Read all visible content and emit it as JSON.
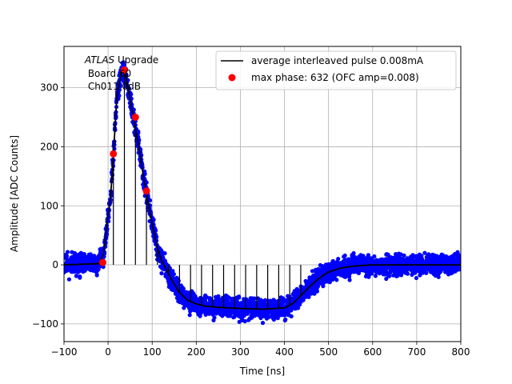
{
  "chart_data": {
    "type": "scatter",
    "xlabel": "Time [ns]",
    "ylabel": "Amplitude [ADC Counts]",
    "xlim": [
      -100,
      800
    ],
    "ylim": [
      -130,
      370
    ],
    "xticks": [
      -100,
      0,
      100,
      200,
      300,
      400,
      500,
      600,
      700,
      800
    ],
    "yticks": [
      -100,
      0,
      100,
      200,
      300
    ],
    "grid": true,
    "legend_position": "top-right",
    "annotation": {
      "atlas": "ATLAS",
      "upgrade": " Upgrade",
      "board": " Board 60",
      "channel": " Ch011 0dB"
    },
    "series": [
      {
        "name": "average interleaved pulse 0.008mA",
        "kind": "line",
        "color": "#000000",
        "x": [
          -100,
          -20,
          -10,
          0,
          5,
          10,
          20,
          30,
          35,
          40,
          50,
          60,
          70,
          80,
          90,
          100,
          110,
          120,
          140,
          160,
          180,
          200,
          220,
          250,
          300,
          350,
          400,
          420,
          440,
          460,
          480,
          500,
          530,
          560,
          600,
          650,
          700,
          800
        ],
        "y": [
          0,
          2,
          20,
          85,
          110,
          160,
          285,
          325,
          330,
          320,
          280,
          240,
          200,
          150,
          110,
          70,
          35,
          10,
          -20,
          -45,
          -60,
          -66,
          -70,
          -72,
          -74,
          -75,
          -73,
          -65,
          -50,
          -35,
          -22,
          -12,
          -5,
          -2,
          0,
          0,
          0,
          0
        ]
      },
      {
        "name": "max phase: 632 (OFC amp=0.008)",
        "kind": "scatter",
        "color": "#ff0000",
        "x": [
          -12,
          12,
          37,
          62,
          87
        ],
        "y": [
          4,
          188,
          330,
          250,
          125
        ]
      },
      {
        "name": "",
        "kind": "scatter",
        "color": "#0000ff",
        "spread": 15
      }
    ]
  }
}
